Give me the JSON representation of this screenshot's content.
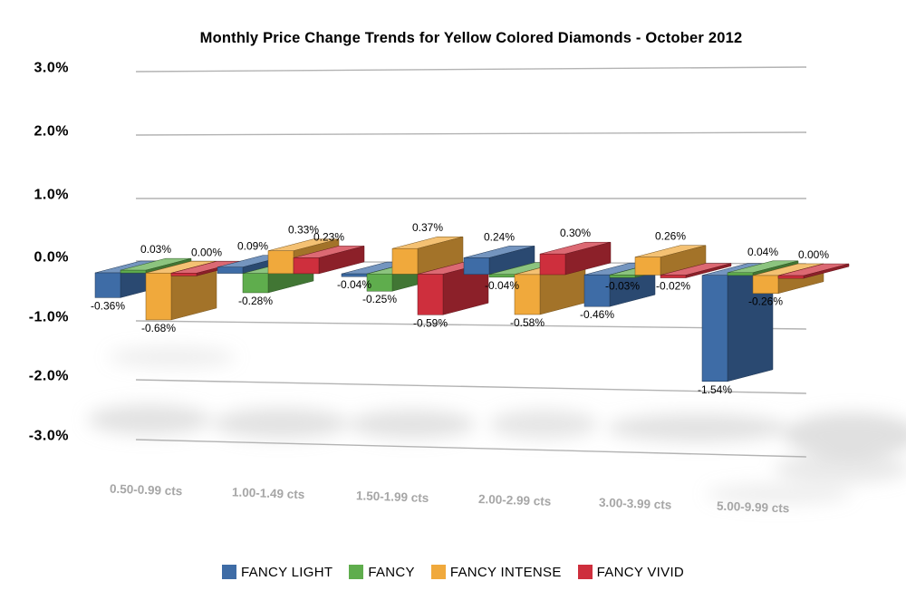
{
  "title": "Monthly Price Change Trends for Yellow Colored Diamonds - October 2012",
  "chart_data": {
    "type": "bar",
    "projection": "3d",
    "title": "Monthly Price Change Trends for Yellow Colored Diamonds - October 2012",
    "categories": [
      "0.50-0.99 cts",
      "1.00-1.49 cts",
      "1.50-1.99 cts",
      "2.00-2.99 cts",
      "3.00-3.99 cts",
      "5.00-9.99 cts"
    ],
    "series": [
      {
        "name": "FANCY LIGHT",
        "color": "#3E6CA6",
        "values": [
          -0.36,
          0.09,
          -0.04,
          0.24,
          -0.46,
          -1.54
        ]
      },
      {
        "name": "FANCY",
        "color": "#5FAD4D",
        "values": [
          0.03,
          -0.28,
          -0.25,
          -0.04,
          -0.03,
          0.04
        ]
      },
      {
        "name": "FANCY INTENSE",
        "color": "#F0A93C",
        "values": [
          -0.68,
          0.33,
          0.37,
          -0.58,
          0.26,
          -0.26
        ]
      },
      {
        "name": "FANCY VIVID",
        "color": "#CE2F3D",
        "values": [
          0.0,
          0.23,
          -0.59,
          0.3,
          -0.02,
          0.0
        ]
      }
    ],
    "data_labels": [
      [
        "-0.36%",
        "0.09%",
        "-0.04%",
        "0.24%",
        "-0.46%",
        "-1.54%"
      ],
      [
        "0.03%",
        "-0.28%",
        "-0.25%",
        "-0.04%",
        "-0.03%",
        "0.04%"
      ],
      [
        "-0.68%",
        "0.33%",
        "0.37%",
        "-0.58%",
        "0.26%",
        "-0.26%"
      ],
      [
        "0.00%",
        "0.23%",
        "-0.59%",
        "0.30%",
        "-0.02%",
        "0.00%"
      ]
    ],
    "y_ticks": [
      "3.0%",
      "2.0%",
      "1.0%",
      "0.0%",
      "-1.0%",
      "-2.0%",
      "-3.0%"
    ],
    "ylim": [
      -3.0,
      3.0
    ],
    "xlabel": "",
    "ylabel": "",
    "grid": true,
    "legend_position": "bottom",
    "category_label_color": "#a6a6a6",
    "value_label_color": "#000000",
    "gridline_color": "#b3b3b3"
  }
}
